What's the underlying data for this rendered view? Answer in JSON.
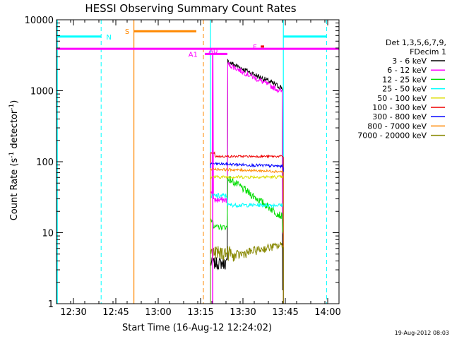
{
  "chart_data": {
    "type": "line",
    "title": "HESSI Observing Summary Count Rates",
    "xlabel": "Start Time (16-Aug-12 12:24:02)",
    "ylabel_main": "Count Rate (s",
    "ylabel_sup1": "-1",
    "ylabel_mid": " detector",
    "ylabel_sup2": "-1",
    "ylabel_end": ")",
    "timestamp": "19-Aug-2012 08:03",
    "x_minutes_range": [
      0,
      100
    ],
    "y_log_range": [
      1,
      10000
    ],
    "x_ticks": [
      {
        "label": "12:30",
        "t": 6
      },
      {
        "label": "12:45",
        "t": 21
      },
      {
        "label": "13:00",
        "t": 36
      },
      {
        "label": "13:15",
        "t": 51
      },
      {
        "label": "13:30",
        "t": 66
      },
      {
        "label": "13:45",
        "t": 81
      },
      {
        "label": "14:00",
        "t": 96
      }
    ],
    "y_ticks": [
      {
        "label": "1",
        "v": 1
      },
      {
        "label": "10",
        "v": 10
      },
      {
        "label": "100",
        "v": 100
      },
      {
        "label": "1000",
        "v": 1000
      },
      {
        "label": "10000",
        "v": 10000
      }
    ],
    "legend_header": [
      "Det 1,3,5,6,7,9,",
      "FDecim 1"
    ],
    "series": [
      {
        "name": "3 - 6 keV",
        "color": "#000000"
      },
      {
        "name": "6 - 12 keV",
        "color": "#ff00ff"
      },
      {
        "name": "12 - 25 keV",
        "color": "#00dd00"
      },
      {
        "name": "25 - 50 keV",
        "color": "#00ffff"
      },
      {
        "name": "50 - 100 keV",
        "color": "#dddd00"
      },
      {
        "name": "100 - 300 keV",
        "color": "#ee0000"
      },
      {
        "name": "300 - 800 keV",
        "color": "#0000ff"
      },
      {
        "name": "800 - 7000 keV",
        "color": "#ff8800"
      },
      {
        "name": "7000 - 20000 keV",
        "color": "#888800"
      }
    ],
    "flags": [
      {
        "label": "N",
        "color": "#00ffff",
        "y": 5800
      },
      {
        "label": "S",
        "color": "#ff8800",
        "y": 6900
      },
      {
        "label": "A1",
        "color": "#ff00ff",
        "y": 3300
      },
      {
        "label": "A0",
        "color": "#ff00ff",
        "y": 3700
      },
      {
        "label": "F",
        "color": "#ff00ff",
        "y": 4200
      }
    ]
  }
}
